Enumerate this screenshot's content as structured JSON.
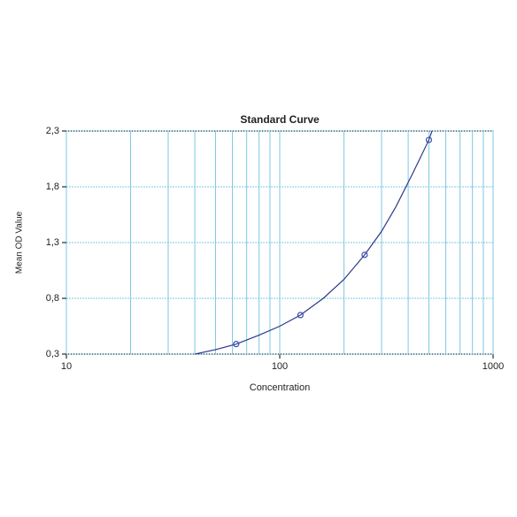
{
  "chart_data": {
    "type": "scatter",
    "title": "Standard Curve",
    "x_label": "Concentration",
    "y_label": "Mean OD Value",
    "log_x": true,
    "grid": true,
    "xlim": [
      10,
      1000
    ],
    "xticks": [
      10,
      100,
      1000
    ],
    "x_minor_grid": [
      20,
      30,
      40,
      50,
      60,
      70,
      80,
      90,
      200,
      300,
      400,
      500,
      600,
      700,
      800,
      900
    ],
    "ylim": [
      0.3,
      2.3
    ],
    "yticks": [
      {
        "value": 0.3,
        "label": "0,3"
      },
      {
        "value": 0.8,
        "label": "0,8"
      },
      {
        "value": 1.3,
        "label": "1,3"
      },
      {
        "value": 1.8,
        "label": "1,8"
      },
      {
        "value": 2.3,
        "label": "2,3"
      }
    ],
    "points": {
      "color": "#3b4fa8",
      "x": [
        62.5,
        125,
        250,
        500
      ],
      "values": [
        0.39,
        0.65,
        1.19,
        2.22
      ]
    },
    "curve": {
      "color": "#2b3a8c",
      "x": [
        40,
        50,
        62.5,
        80,
        100,
        125,
        160,
        200,
        250,
        300,
        350,
        420,
        500,
        517
      ],
      "values": [
        0.3,
        0.34,
        0.39,
        0.47,
        0.55,
        0.65,
        0.8,
        0.97,
        1.19,
        1.4,
        1.62,
        1.92,
        2.22,
        2.3
      ]
    },
    "grid_color": "#7ec8e3"
  }
}
